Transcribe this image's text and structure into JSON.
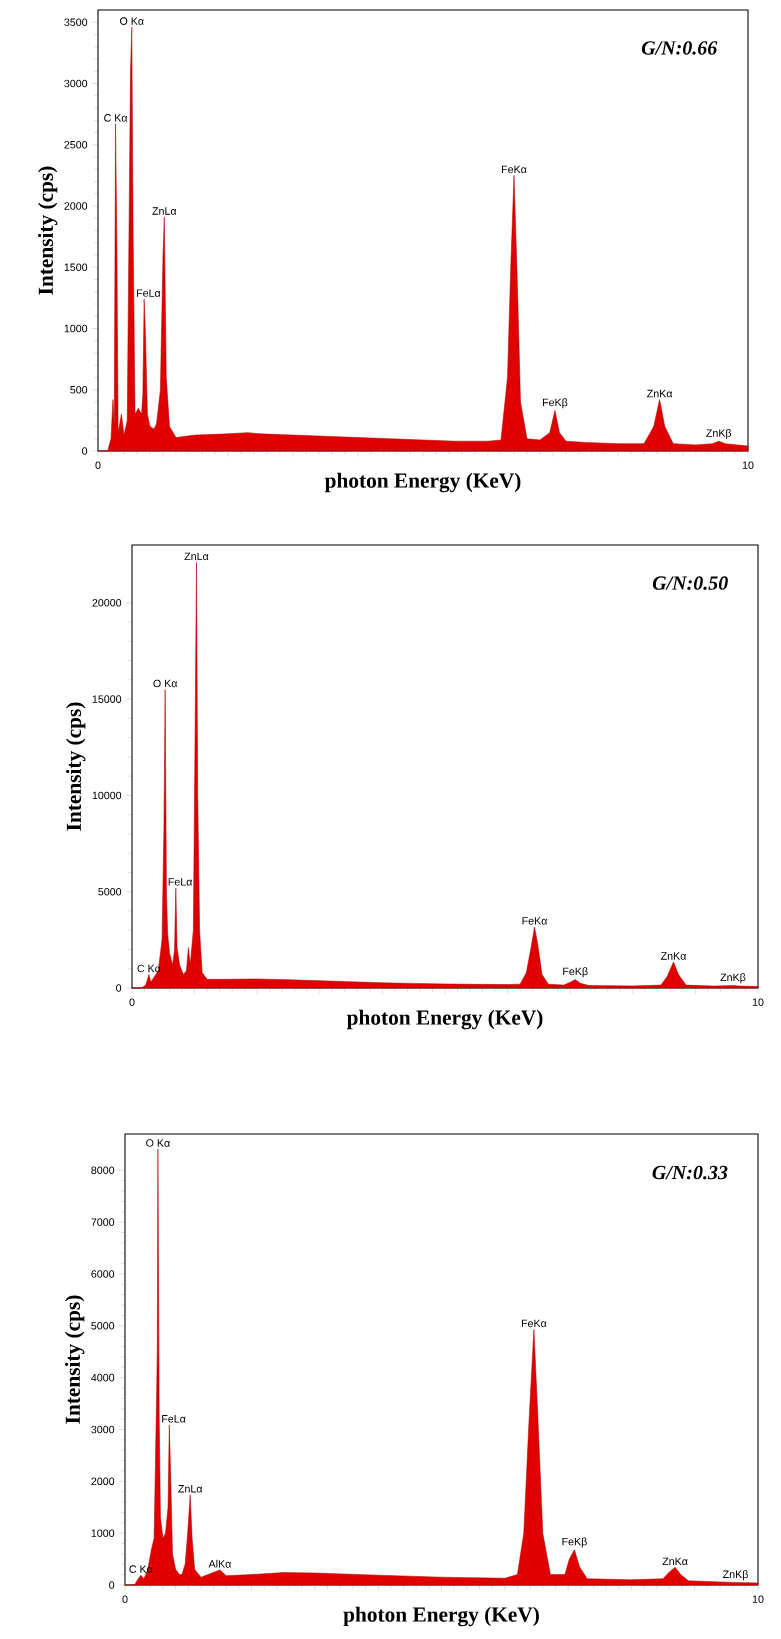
{
  "chart_data": [
    {
      "type": "area",
      "xlabel": "photon Energy (KeV)",
      "ylabel": "Intensity (cps)",
      "xlim": [
        0,
        10
      ],
      "xticks": [
        0,
        {
          "value": 1,
          "label": null
        },
        {
          "value": 2,
          "label": null
        },
        {
          "value": 3,
          "label": null
        },
        {
          "value": 4,
          "label": null
        },
        {
          "value": 5,
          "label": null
        },
        {
          "value": 6,
          "label": null
        },
        {
          "value": 7,
          "label": null
        },
        {
          "value": 8,
          "label": null
        },
        {
          "value": 9,
          "label": null
        },
        10
      ],
      "ylim": [
        0,
        3600
      ],
      "yticks": [
        0,
        500,
        1000,
        1500,
        2000,
        2500,
        3000,
        3500
      ],
      "series": [
        {
          "color": "#e00000",
          "x": [
            0,
            0.15,
            0.2,
            0.23,
            0.25,
            0.27,
            0.29,
            0.31,
            0.36,
            0.4,
            0.45,
            0.5,
            0.52,
            0.54,
            0.57,
            0.62,
            0.67,
            0.69,
            0.71,
            0.73,
            0.76,
            0.8,
            0.86,
            0.9,
            0.96,
            1.0,
            1.02,
            1.05,
            1.1,
            1.2,
            1.5,
            2,
            2.3,
            2.5,
            3,
            3.5,
            4,
            4.5,
            5,
            5.5,
            6,
            6.2,
            6.3,
            6.35,
            6.4,
            6.45,
            6.5,
            6.6,
            6.8,
            6.95,
            7.03,
            7.1,
            7.2,
            7.5,
            8,
            8.4,
            8.55,
            8.64,
            8.72,
            8.85,
            9.2,
            9.45,
            9.55,
            9.65,
            10
          ],
          "values": [
            0,
            0,
            100,
            420,
            200,
            2670,
            1700,
            150,
            300,
            130,
            250,
            3100,
            3460,
            1780,
            300,
            350,
            300,
            460,
            1240,
            950,
            300,
            200,
            180,
            220,
            500,
            1600,
            1910,
            600,
            200,
            110,
            130,
            140,
            150,
            140,
            130,
            120,
            110,
            100,
            90,
            80,
            80,
            90,
            600,
            1500,
            2250,
            1400,
            400,
            100,
            90,
            150,
            330,
            150,
            80,
            70,
            60,
            60,
            200,
            420,
            200,
            60,
            50,
            60,
            80,
            60,
            40
          ]
        }
      ],
      "annotations": [
        "G/N:0.66",
        {
          "text": "C Kα",
          "x": 0.27,
          "y": 2670
        },
        {
          "text": "O Kα",
          "x": 0.52,
          "y": 3460
        },
        {
          "text": "FeLα",
          "x": 0.71,
          "y": 1240
        },
        {
          "text": "ZnLα",
          "x": 1.02,
          "y": 1910
        },
        {
          "text": "FeKα",
          "x": 6.4,
          "y": 2250
        },
        {
          "text": "FeKβ",
          "x": 7.03,
          "y": 330
        },
        {
          "text": "ZnKα",
          "x": 8.64,
          "y": 420
        },
        {
          "text": "ZnKβ",
          "x": 9.55,
          "y": 80
        }
      ]
    },
    {
      "type": "area",
      "xlabel": "photon Energy (KeV)",
      "ylabel": "Intensity (cps)",
      "xlim": [
        0,
        10
      ],
      "xticks": [
        0,
        {
          "value": 1,
          "label": null
        },
        {
          "value": 2,
          "label": null
        },
        {
          "value": 3,
          "label": null
        },
        {
          "value": 4,
          "label": null
        },
        {
          "value": 5,
          "label": null
        },
        {
          "value": 6,
          "label": null
        },
        {
          "value": 7,
          "label": null
        },
        {
          "value": 8,
          "label": null
        },
        {
          "value": 9,
          "label": null
        },
        10
      ],
      "ylim": [
        0,
        23000
      ],
      "yticks": [
        0,
        5000,
        10000,
        15000,
        20000
      ],
      "series": [
        {
          "color": "#e00000",
          "x": [
            0,
            0.15,
            0.22,
            0.27,
            0.3,
            0.36,
            0.42,
            0.48,
            0.51,
            0.53,
            0.55,
            0.57,
            0.6,
            0.65,
            0.68,
            0.7,
            0.72,
            0.76,
            0.82,
            0.87,
            0.9,
            0.93,
            0.98,
            1.01,
            1.03,
            1.05,
            1.08,
            1.12,
            1.2,
            1.5,
            2,
            2.5,
            3,
            3.5,
            4,
            4.5,
            5,
            5.5,
            6,
            6.2,
            6.3,
            6.38,
            6.43,
            6.48,
            6.55,
            6.65,
            6.9,
            7.0,
            7.08,
            7.16,
            7.3,
            8,
            8.45,
            8.55,
            8.65,
            8.73,
            8.85,
            9.3,
            9.5,
            9.6,
            9.7,
            10
          ],
          "values": [
            0,
            0,
            150,
            700,
            300,
            600,
            900,
            2500,
            8300,
            15500,
            5000,
            2800,
            1800,
            1200,
            2000,
            5200,
            2100,
            1200,
            700,
            900,
            2100,
            1200,
            3000,
            14000,
            22100,
            10000,
            3000,
            800,
            450,
            450,
            470,
            430,
            380,
            320,
            270,
            240,
            210,
            190,
            180,
            200,
            800,
            2200,
            3170,
            2300,
            700,
            200,
            150,
            300,
            440,
            250,
            130,
            110,
            150,
            600,
            1350,
            700,
            150,
            100,
            120,
            130,
            100,
            80
          ]
        }
      ],
      "annotations": [
        "G/N:0.50",
        {
          "text": "C Kα",
          "x": 0.27,
          "y": 700
        },
        {
          "text": "O Kα",
          "x": 0.53,
          "y": 15500
        },
        {
          "text": "FeLα",
          "x": 0.7,
          "y": 5200
        },
        {
          "text": "ZnLα",
          "x": 1.03,
          "y": 22100
        },
        {
          "text": "FeKα",
          "x": 6.43,
          "y": 3170
        },
        {
          "text": "FeKβ",
          "x": 7.08,
          "y": 440
        },
        {
          "text": "ZnKα",
          "x": 8.65,
          "y": 1350
        },
        {
          "text": "ZnKβ",
          "x": 9.6,
          "y": 130
        }
      ]
    },
    {
      "type": "area",
      "xlabel": "photon Energy (KeV)",
      "ylabel": "Intensity (cps)",
      "xlim": [
        0,
        10
      ],
      "xticks": [
        0,
        {
          "value": 1,
          "label": null
        },
        {
          "value": 2,
          "label": null
        },
        {
          "value": 3,
          "label": null
        },
        {
          "value": 4,
          "label": null
        },
        {
          "value": 5,
          "label": null
        },
        {
          "value": 6,
          "label": null
        },
        {
          "value": 7,
          "label": null
        },
        {
          "value": 8,
          "label": null
        },
        {
          "value": 9,
          "label": null
        },
        10
      ],
      "ylim": [
        0,
        8700
      ],
      "yticks": [
        0,
        1000,
        2000,
        3000,
        4000,
        5000,
        6000,
        7000,
        8000
      ],
      "series": [
        {
          "color": "#e00000",
          "x": [
            0,
            0.15,
            0.2,
            0.25,
            0.3,
            0.36,
            0.42,
            0.46,
            0.49,
            0.51,
            0.52,
            0.54,
            0.56,
            0.6,
            0.64,
            0.68,
            0.7,
            0.72,
            0.75,
            0.8,
            0.86,
            0.9,
            0.95,
            0.99,
            1.03,
            1.06,
            1.1,
            1.2,
            1.5,
            1.6,
            2,
            2.5,
            3,
            3.5,
            4,
            4.5,
            5,
            5.5,
            6,
            6.2,
            6.3,
            6.38,
            6.46,
            6.52,
            6.6,
            6.72,
            6.95,
            7.02,
            7.1,
            7.18,
            7.3,
            8,
            8.5,
            8.6,
            8.69,
            8.78,
            8.9,
            9.4,
            9.6,
            10
          ],
          "values": [
            0,
            0,
            100,
            190,
            120,
            300,
            700,
            900,
            3000,
            4500,
            8410,
            3300,
            1300,
            900,
            1000,
            1500,
            3090,
            2200,
            600,
            300,
            200,
            200,
            400,
            1000,
            1740,
            900,
            300,
            150,
            290,
            180,
            200,
            240,
            230,
            210,
            190,
            170,
            150,
            140,
            130,
            200,
            1000,
            3100,
            4930,
            3300,
            1000,
            200,
            200,
            500,
            680,
            350,
            120,
            100,
            120,
            250,
            340,
            200,
            80,
            60,
            50,
            40
          ]
        }
      ],
      "annotations": [
        "G/N:0.33",
        {
          "text": "C Kα",
          "x": 0.25,
          "y": 190
        },
        {
          "text": "O Kα",
          "x": 0.52,
          "y": 8410
        },
        {
          "text": "FeLα",
          "x": 0.7,
          "y": 3090
        },
        {
          "text": "ZnLα",
          "x": 1.03,
          "y": 1740
        },
        {
          "text": "AlKα",
          "x": 1.5,
          "y": 290
        },
        {
          "text": "FeKα",
          "x": 6.46,
          "y": 4930
        },
        {
          "text": "FeKβ",
          "x": 7.1,
          "y": 680
        },
        {
          "text": "ZnKα",
          "x": 8.69,
          "y": 340
        },
        {
          "text": "ZnKβ",
          "x": 9.6,
          "y": 50
        }
      ]
    }
  ]
}
